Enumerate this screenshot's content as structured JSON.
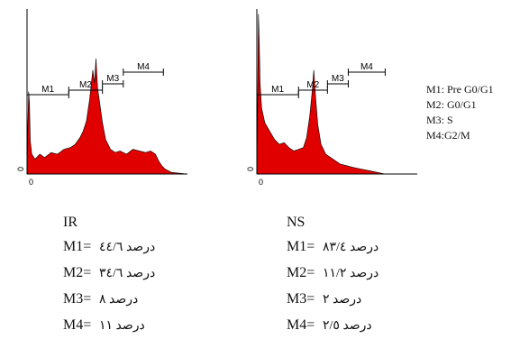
{
  "chart_data": [
    {
      "type": "area",
      "id": "ir",
      "x_tick": "0",
      "y_tick": "0",
      "fill": "#e00000",
      "markers": [
        {
          "label": "M1",
          "start": 0,
          "end": 0.26
        },
        {
          "label": "M2",
          "start": 0.26,
          "end": 0.47
        },
        {
          "label": "M3",
          "start": 0.47,
          "end": 0.6
        },
        {
          "label": "M4",
          "start": 0.6,
          "end": 0.85
        }
      ],
      "histogram": [
        [
          0,
          0.05
        ],
        [
          0.005,
          0.3
        ],
        [
          0.01,
          0.5
        ],
        [
          0.015,
          0.43
        ],
        [
          0.02,
          0.2
        ],
        [
          0.03,
          0.12
        ],
        [
          0.05,
          0.09
        ],
        [
          0.08,
          0.12
        ],
        [
          0.11,
          0.1
        ],
        [
          0.15,
          0.13
        ],
        [
          0.19,
          0.12
        ],
        [
          0.23,
          0.15
        ],
        [
          0.27,
          0.16
        ],
        [
          0.3,
          0.18
        ],
        [
          0.33,
          0.22
        ],
        [
          0.35,
          0.26
        ],
        [
          0.37,
          0.32
        ],
        [
          0.39,
          0.45
        ],
        [
          0.41,
          0.63
        ],
        [
          0.42,
          0.55
        ],
        [
          0.43,
          0.7
        ],
        [
          0.44,
          0.52
        ],
        [
          0.45,
          0.45
        ],
        [
          0.47,
          0.31
        ],
        [
          0.49,
          0.21
        ],
        [
          0.52,
          0.15
        ],
        [
          0.55,
          0.13
        ],
        [
          0.58,
          0.14
        ],
        [
          0.62,
          0.12
        ],
        [
          0.66,
          0.15
        ],
        [
          0.7,
          0.14
        ],
        [
          0.74,
          0.13
        ],
        [
          0.77,
          0.14
        ],
        [
          0.8,
          0.12
        ],
        [
          0.82,
          0.08
        ],
        [
          0.84,
          0.05
        ],
        [
          0.86,
          0.03
        ],
        [
          0.9,
          0.01
        ],
        [
          1,
          0
        ]
      ]
    },
    {
      "type": "area",
      "id": "ns",
      "x_tick": "0",
      "y_tick": "0",
      "fill": "#e00000",
      "markers": [
        {
          "label": "M1",
          "start": 0,
          "end": 0.26
        },
        {
          "label": "M2",
          "start": 0.26,
          "end": 0.44
        },
        {
          "label": "M3",
          "start": 0.44,
          "end": 0.57
        },
        {
          "label": "M4",
          "start": 0.57,
          "end": 0.8
        }
      ],
      "histogram": [
        [
          0,
          0.05
        ],
        [
          0.005,
          0.45
        ],
        [
          0.01,
          0.97
        ],
        [
          0.015,
          0.8
        ],
        [
          0.02,
          0.55
        ],
        [
          0.03,
          0.4
        ],
        [
          0.05,
          0.31
        ],
        [
          0.08,
          0.26
        ],
        [
          0.11,
          0.21
        ],
        [
          0.14,
          0.18
        ],
        [
          0.17,
          0.19
        ],
        [
          0.2,
          0.16
        ],
        [
          0.23,
          0.14
        ],
        [
          0.26,
          0.15
        ],
        [
          0.29,
          0.16
        ],
        [
          0.31,
          0.22
        ],
        [
          0.33,
          0.35
        ],
        [
          0.345,
          0.5
        ],
        [
          0.355,
          0.63
        ],
        [
          0.365,
          0.48
        ],
        [
          0.38,
          0.3
        ],
        [
          0.4,
          0.18
        ],
        [
          0.43,
          0.12
        ],
        [
          0.46,
          0.1
        ],
        [
          0.49,
          0.08
        ],
        [
          0.52,
          0.06
        ],
        [
          0.56,
          0.05
        ],
        [
          0.6,
          0.04
        ],
        [
          0.65,
          0.03
        ],
        [
          0.7,
          0.02
        ],
        [
          0.75,
          0.01
        ],
        [
          0.8,
          0.0
        ],
        [
          1,
          0
        ]
      ]
    }
  ],
  "legend": [
    "M1: Pre G0/G1",
    "M2: G0/G1",
    "M3: S",
    "M4:G2/M"
  ],
  "stats": {
    "ir": {
      "title": "IR",
      "rows": [
        {
          "m": "M1=",
          "v": "درصد ٤٤/٦",
          "pct": 44.6
        },
        {
          "m": "M2=",
          "v": "درصد ٣٤/٦",
          "pct": 34.6
        },
        {
          "m": "M3=",
          "v": "درصد ٨",
          "pct": 8
        },
        {
          "m": "M4=",
          "v": "درصد ١١",
          "pct": 11
        }
      ]
    },
    "ns": {
      "title": "NS",
      "rows": [
        {
          "m": "M1=",
          "v": "درصد ٨٣/٤",
          "pct": 83.4
        },
        {
          "m": "M2=",
          "v": "درصد ١١/٢",
          "pct": 11.2
        },
        {
          "m": "M3=",
          "v": "درصد ٢",
          "pct": 2
        },
        {
          "m": "M4=",
          "v": "درصد ٢/٥",
          "pct": 2.5
        }
      ]
    }
  }
}
